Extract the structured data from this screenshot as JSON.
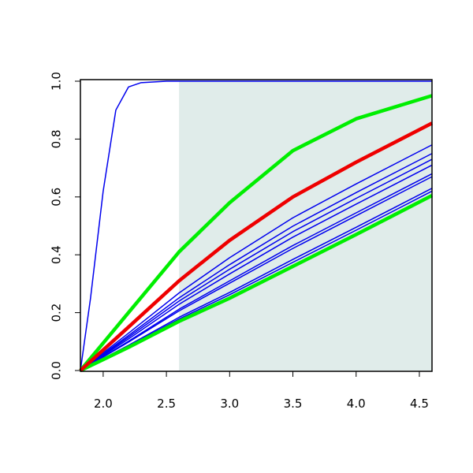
{
  "chart_data": {
    "type": "line",
    "xlim": [
      1.82,
      4.6
    ],
    "ylim": [
      0,
      1
    ],
    "xticks": [
      {
        "value": 2,
        "label": "2.0"
      },
      {
        "value": 2.5,
        "label": "2.5"
      },
      {
        "value": 3,
        "label": "3.0"
      },
      {
        "value": 3.5,
        "label": "3.5"
      },
      {
        "value": 4,
        "label": "4.0"
      },
      {
        "value": 4.5,
        "label": "4.5"
      }
    ],
    "yticks": [
      {
        "value": 0,
        "label": "0.0"
      },
      {
        "value": 0.2,
        "label": "0.2"
      },
      {
        "value": 0.4,
        "label": "0.4"
      },
      {
        "value": 0.6,
        "label": "0.6"
      },
      {
        "value": 0.8,
        "label": "0.8"
      },
      {
        "value": 1,
        "label": "1.0"
      }
    ],
    "highlight_x": [
      2.6,
      4.6
    ],
    "highlight_color": "#e0ecea",
    "series": [
      {
        "color": "#0000ee",
        "width": 1.5,
        "x": [
          1.82,
          1.9,
          2.0,
          2.1,
          2.2,
          2.3,
          2.5,
          4.6
        ],
        "values": [
          0,
          0.25,
          0.62,
          0.9,
          0.98,
          0.995,
          1,
          1
        ]
      },
      {
        "color": "#0000ee",
        "width": 1.5,
        "x": [
          1.82,
          2.2,
          2.6,
          3.0,
          3.5,
          4.0,
          4.6
        ],
        "values": [
          0,
          0.129,
          0.268,
          0.39,
          0.528,
          0.645,
          0.78
        ]
      },
      {
        "color": "#0000ee",
        "width": 1.5,
        "x": [
          1.82,
          2.2,
          2.6,
          3.0,
          3.5,
          4.0,
          4.6
        ],
        "values": [
          0,
          0.121,
          0.251,
          0.366,
          0.499,
          0.615,
          0.75
        ]
      },
      {
        "color": "#0000ee",
        "width": 1.5,
        "x": [
          1.82,
          2.2,
          2.6,
          3.0,
          3.5,
          4.0,
          4.6
        ],
        "values": [
          0,
          0.115,
          0.24,
          0.35,
          0.48,
          0.595,
          0.73
        ]
      },
      {
        "color": "#0000ee",
        "width": 1.5,
        "x": [
          1.82,
          2.2,
          2.6,
          3.0,
          3.5,
          4.0,
          4.6
        ],
        "values": [
          0,
          0.109,
          0.229,
          0.334,
          0.461,
          0.575,
          0.71
        ]
      },
      {
        "color": "#0000ee",
        "width": 1.5,
        "x": [
          1.82,
          2.2,
          2.6,
          3.0,
          3.5,
          4.0,
          4.6
        ],
        "values": [
          0,
          0.101,
          0.212,
          0.31,
          0.432,
          0.545,
          0.68
        ]
      },
      {
        "color": "#0000ee",
        "width": 1.5,
        "x": [
          1.82,
          2.2,
          2.6,
          3.0,
          3.5,
          4.0,
          4.6
        ],
        "values": [
          0,
          0.098,
          0.206,
          0.302,
          0.422,
          0.535,
          0.67
        ]
      },
      {
        "color": "#0000ee",
        "width": 1.5,
        "x": [
          1.82,
          2.2,
          2.6,
          3.0,
          3.5,
          4.0,
          4.6
        ],
        "values": [
          0,
          0.087,
          0.184,
          0.27,
          0.384,
          0.495,
          0.63
        ]
      },
      {
        "color": "#0000ee",
        "width": 1.5,
        "x": [
          1.82,
          2.2,
          2.6,
          3.0,
          3.5,
          4.0,
          4.6
        ],
        "values": [
          0,
          0.084,
          0.178,
          0.262,
          0.374,
          0.485,
          0.62
        ]
      },
      {
        "color": "#00ee00",
        "width": 4.5,
        "x": [
          1.82,
          2.2,
          2.6,
          3.0,
          3.5,
          4.0,
          4.6
        ],
        "values": [
          0,
          0.2,
          0.41,
          0.58,
          0.76,
          0.87,
          0.95
        ]
      },
      {
        "color": "#00ee00",
        "width": 4.5,
        "x": [
          1.82,
          2.2,
          2.6,
          3.0,
          3.5,
          4.0,
          4.6
        ],
        "values": [
          0,
          0.08,
          0.17,
          0.25,
          0.36,
          0.47,
          0.605
        ]
      },
      {
        "color": "#ee0000",
        "width": 4.5,
        "x": [
          1.82,
          2.2,
          2.6,
          3.0,
          3.5,
          4.0,
          4.6
        ],
        "values": [
          0,
          0.15,
          0.31,
          0.45,
          0.6,
          0.72,
          0.855
        ]
      }
    ]
  }
}
